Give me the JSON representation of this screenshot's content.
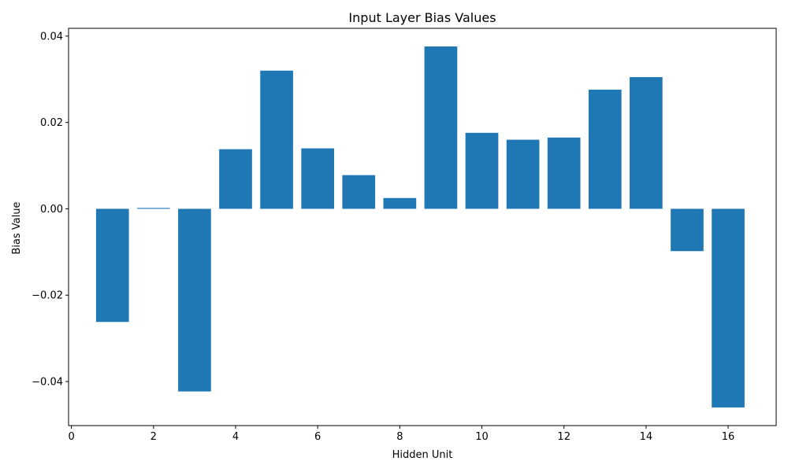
{
  "chart_data": {
    "type": "bar",
    "title": "Input Layer Bias Values",
    "xlabel": "Hidden Unit",
    "ylabel": "Bias Value",
    "categories": [
      1,
      2,
      3,
      4,
      5,
      6,
      7,
      8,
      9,
      10,
      11,
      12,
      13,
      14,
      15,
      16
    ],
    "values": [
      -0.0262,
      0.0002,
      -0.0423,
      0.0138,
      0.032,
      0.014,
      0.0078,
      0.0025,
      0.0376,
      0.0176,
      0.016,
      0.0165,
      0.0276,
      0.0305,
      -0.0098,
      -0.046
    ],
    "bar_width": 0.8,
    "xlim": [
      -0.07,
      17.17
    ],
    "ylim": [
      -0.0502,
      0.0418
    ],
    "xticks": [
      0,
      2,
      4,
      6,
      8,
      10,
      12,
      14,
      16
    ],
    "xtick_labels": [
      "0",
      "2",
      "4",
      "6",
      "8",
      "10",
      "12",
      "14",
      "16"
    ],
    "yticks": [
      -0.04,
      -0.02,
      0.0,
      0.02,
      0.04
    ],
    "ytick_labels": [
      "−0.04",
      "−0.02",
      "0.00",
      "0.02",
      "0.04"
    ],
    "grid": false,
    "colors": {
      "bar": "#1f77b4",
      "axes": "#000000",
      "background": "#ffffff"
    }
  }
}
